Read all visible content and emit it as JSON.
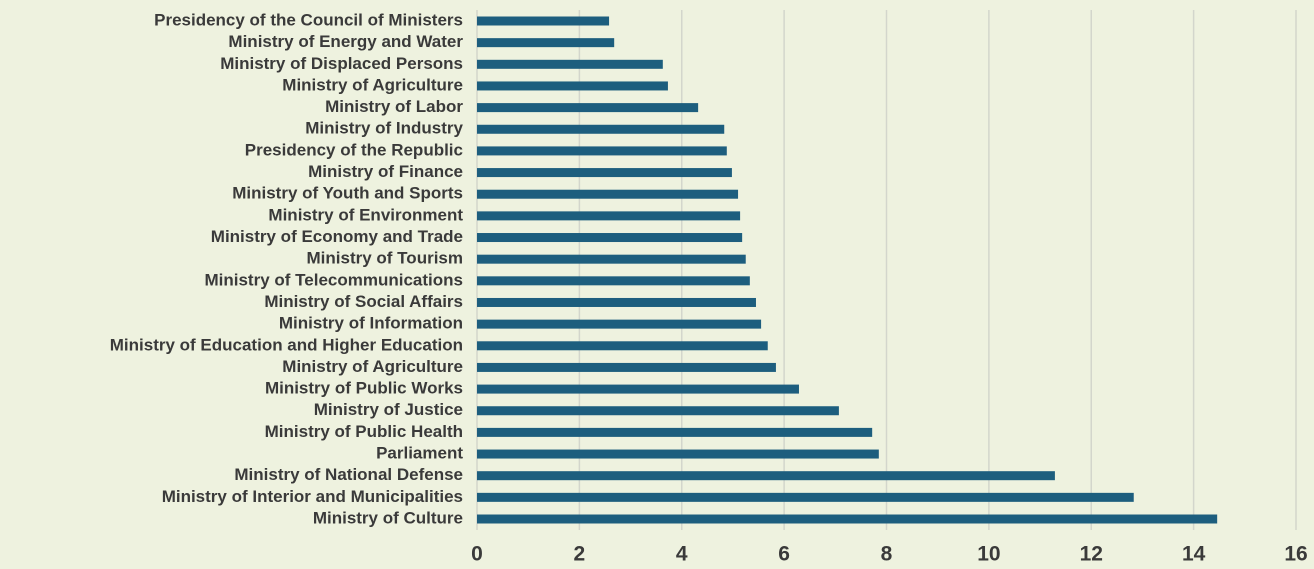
{
  "chart_data": {
    "type": "barh",
    "categories": [
      "Presidency of the Council of Ministers",
      "Ministry of Energy and Water",
      "Ministry of Displaced Persons",
      "Ministry of Agriculture",
      "Ministry of Labor",
      "Ministry of Industry",
      "Presidency of the Republic",
      "Ministry of Finance",
      "Ministry of Youth and Sports",
      "Ministry of Environment",
      "Ministry of Economy and Trade",
      "Ministry of Tourism",
      "Ministry of Telecommunications",
      "Ministry of Social Affairs",
      "Ministry of Information",
      "Ministry of Education and Higher Education",
      "Ministry of Agriculture",
      "Ministry of Public Works",
      "Ministry of Justice",
      "Ministry of Public Health",
      "Parliament",
      "Ministry of National Defense",
      "Ministry of Interior and Municipalities",
      "Ministry of Culture"
    ],
    "values": [
      2.58,
      2.68,
      3.63,
      3.73,
      4.32,
      4.83,
      4.88,
      4.98,
      5.1,
      5.14,
      5.18,
      5.25,
      5.33,
      5.45,
      5.55,
      5.68,
      5.84,
      6.29,
      7.07,
      7.72,
      7.85,
      11.29,
      12.83,
      14.46
    ],
    "color": "#1d5e7e",
    "xlim": [
      0,
      16
    ],
    "xticks": [
      0,
      2,
      4,
      6,
      8,
      10,
      12,
      14,
      16
    ],
    "grid": true
  }
}
